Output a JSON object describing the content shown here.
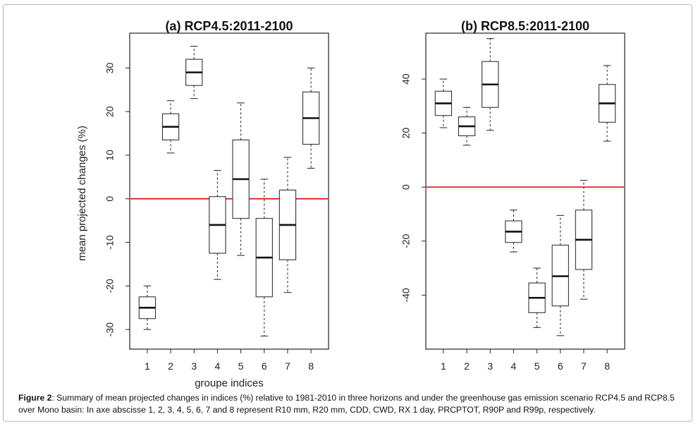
{
  "chart_data": [
    {
      "type": "box",
      "title": "(a) RCP4.5:2011-2100",
      "ylabel": "mean projected changes (%)",
      "xlabel": "groupe indices",
      "categories": [
        "1",
        "2",
        "3",
        "4",
        "5",
        "6",
        "7",
        "8"
      ],
      "ylim": [
        -34.5,
        38
      ],
      "yticks": [
        -30,
        -20,
        -10,
        0,
        10,
        20,
        30
      ],
      "reference_line": {
        "y": 0,
        "color": "#e02020"
      },
      "boxes": [
        {
          "whisker_low": -30,
          "q1": -27.5,
          "median": -25,
          "q3": -22.5,
          "whisker_high": -20
        },
        {
          "whisker_low": 10.5,
          "q1": 13.5,
          "median": 16.5,
          "q3": 19.5,
          "whisker_high": 22.5
        },
        {
          "whisker_low": 23,
          "q1": 26,
          "median": 29,
          "q3": 32,
          "whisker_high": 35
        },
        {
          "whisker_low": -18.5,
          "q1": -12.5,
          "median": -6,
          "q3": 0.5,
          "whisker_high": 6.5
        },
        {
          "whisker_low": -13,
          "q1": -4.5,
          "median": 4.5,
          "q3": 13.5,
          "whisker_high": 22
        },
        {
          "whisker_low": -31.5,
          "q1": -22.5,
          "median": -13.5,
          "q3": -4.5,
          "whisker_high": 4.5
        },
        {
          "whisker_low": -21.5,
          "q1": -14,
          "median": -6,
          "q3": 2,
          "whisker_high": 9.5
        },
        {
          "whisker_low": 7,
          "q1": 12.5,
          "median": 18.5,
          "q3": 24.5,
          "whisker_high": 30
        }
      ]
    },
    {
      "type": "box",
      "title": "(b) RCP8.5:2011-2100",
      "ylabel": "",
      "xlabel": "",
      "categories": [
        "1",
        "2",
        "3",
        "4",
        "5",
        "6",
        "7",
        "8"
      ],
      "ylim": [
        -60,
        57
      ],
      "yticks": [
        -40,
        -20,
        0,
        20,
        40
      ],
      "reference_line": {
        "y": 0,
        "color": "#e02020"
      },
      "boxes": [
        {
          "whisker_low": 22,
          "q1": 26.5,
          "median": 31,
          "q3": 35.5,
          "whisker_high": 40
        },
        {
          "whisker_low": 15.5,
          "q1": 19,
          "median": 22.5,
          "q3": 26,
          "whisker_high": 29.5
        },
        {
          "whisker_low": 21,
          "q1": 29.5,
          "median": 38,
          "q3": 46.5,
          "whisker_high": 55
        },
        {
          "whisker_low": -24,
          "q1": -20.5,
          "median": -16.5,
          "q3": -12.5,
          "whisker_high": -8.5
        },
        {
          "whisker_low": -52,
          "q1": -46.5,
          "median": -41,
          "q3": -35.5,
          "whisker_high": -30
        },
        {
          "whisker_low": -55,
          "q1": -44,
          "median": -33,
          "q3": -21.5,
          "whisker_high": -10.5
        },
        {
          "whisker_low": -41.5,
          "q1": -30.5,
          "median": -19.5,
          "q3": -8.5,
          "whisker_high": 2.5
        },
        {
          "whisker_low": 17,
          "q1": 24,
          "median": 31,
          "q3": 38,
          "whisker_high": 45
        }
      ]
    }
  ],
  "caption": {
    "label": "Figure 2",
    "text": ": Summary of mean projected changes in indices (%) relative to 1981-2010 in three horizons and under the greenhouse gas emission scenario RCP4.5 and RCP8.5 over Mono basin: In axe abscisse 1, 2, 3, 4, 5, 6, 7 and 8 represent R10 mm, R20 mm, CDD, CWD, RX 1 day, PRCPTOT, R90P and R99p, respectively."
  }
}
